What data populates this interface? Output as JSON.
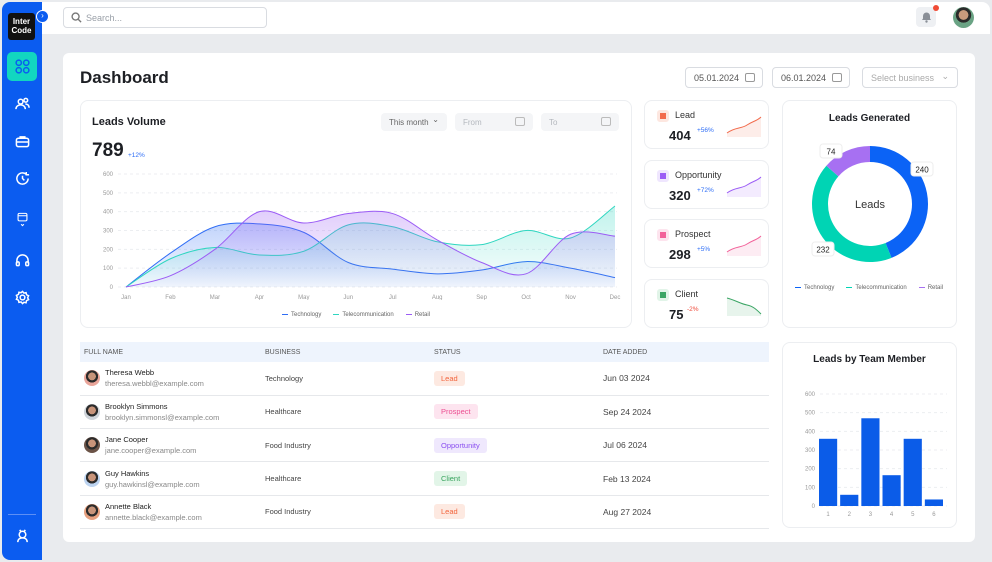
{
  "sidebar": {
    "logo": "Inter Code",
    "items": [
      "dashboard",
      "team",
      "briefcase",
      "history",
      "wallet",
      "support",
      "settings"
    ]
  },
  "topbar": {
    "search_placeholder": "Search...",
    "notification_dot": true
  },
  "page": {
    "title": "Dashboard",
    "date_from": "05.01.2024",
    "date_to": "06.01.2024",
    "business_placeholder": "Select business"
  },
  "leads_volume": {
    "title": "Leads Volume",
    "total": "789",
    "change": "+12%",
    "period": "This month",
    "from_placeholder": "From",
    "to_placeholder": "To"
  },
  "kpis": [
    {
      "label": "Lead",
      "value": "404",
      "change": "+56%",
      "color": "#f26b4c",
      "bg": "#fde7e0",
      "trend": "up"
    },
    {
      "label": "Opportunity",
      "value": "320",
      "change": "+72%",
      "color": "#9b5cf5",
      "bg": "#efe6fe",
      "trend": "up"
    },
    {
      "label": "Prospect",
      "value": "298",
      "change": "+5%",
      "color": "#f2629a",
      "bg": "#fde4ee",
      "trend": "up"
    },
    {
      "label": "Client",
      "value": "75",
      "change": "-2%",
      "color": "#3aa564",
      "bg": "#e1f4e8",
      "trend": "down"
    }
  ],
  "table": {
    "headers": [
      "FULL NAME",
      "BUSINESS",
      "STATUS",
      "DATE ADDED"
    ],
    "rows": [
      {
        "name": "Theresa Webb",
        "email": "theresa.webbl@example.com",
        "business": "Technology",
        "status": "Lead",
        "date": "Jun 03 2024"
      },
      {
        "name": "Brooklyn Simmons",
        "email": "brooklyn.simmonsl@example.com",
        "business": "Healthcare",
        "status": "Prospect",
        "date": "Sep 24 2024"
      },
      {
        "name": "Jane Cooper",
        "email": "jane.cooper@example.com",
        "business": "Food Industry",
        "status": "Opportunity",
        "date": "Jul 06 2024"
      },
      {
        "name": "Guy Hawkins",
        "email": "guy.hawkinsl@example.com",
        "business": "Healthcare",
        "status": "Client",
        "date": "Feb 13 2024"
      },
      {
        "name": "Annette Black",
        "email": "annette.black@example.com",
        "business": "Food Industry",
        "status": "Lead",
        "date": "Aug 27 2024"
      }
    ]
  },
  "status_colors": {
    "Lead": [
      "#fde9e1",
      "#f2643c"
    ],
    "Prospect": [
      "#fde4ef",
      "#ec4e91"
    ],
    "Opportunity": [
      "#efe8fd",
      "#8a4ef0"
    ],
    "Client": [
      "#e2f5e8",
      "#37a35d"
    ]
  },
  "chart_data": [
    {
      "type": "area",
      "title": "Leads Volume",
      "categories": [
        "Jan",
        "Feb",
        "Mar",
        "Apr",
        "May",
        "Jun",
        "Jul",
        "Aug",
        "Sep",
        "Oct",
        "Nov",
        "Dec"
      ],
      "ylim": [
        0,
        600
      ],
      "yticks": [
        0,
        100,
        200,
        300,
        400,
        500,
        600
      ],
      "grid": true,
      "legend": "bottom",
      "series": [
        {
          "name": "Technology",
          "color": "#2f6df5",
          "values": [
            0,
            180,
            320,
            335,
            290,
            130,
            95,
            70,
            90,
            135,
            100,
            50
          ]
        },
        {
          "name": "Telecommunication",
          "color": "#2fd6c0",
          "values": [
            0,
            150,
            210,
            170,
            190,
            330,
            320,
            240,
            225,
            300,
            260,
            430
          ]
        },
        {
          "name": "Retail",
          "color": "#9b5cf5",
          "values": [
            0,
            60,
            200,
            400,
            340,
            390,
            390,
            250,
            130,
            70,
            280,
            270
          ]
        }
      ]
    },
    {
      "type": "pie",
      "title": "Leads Generated",
      "center_label": "Leads",
      "legend": "bottom",
      "categories": [
        "Technology",
        "Telecommunication",
        "Retail"
      ],
      "values": [
        240,
        232,
        74
      ],
      "colors": [
        "#0b63f6",
        "#00d4b4",
        "#a770f2"
      ]
    },
    {
      "type": "bar",
      "title": "Leads by Team Member",
      "categories": [
        "1",
        "2",
        "3",
        "4",
        "5",
        "6"
      ],
      "values": [
        360,
        60,
        470,
        165,
        360,
        35
      ],
      "ylim": [
        0,
        600
      ],
      "yticks": [
        0,
        100,
        200,
        300,
        400,
        500,
        600
      ],
      "grid": true,
      "color": "#0b5ce8"
    }
  ]
}
